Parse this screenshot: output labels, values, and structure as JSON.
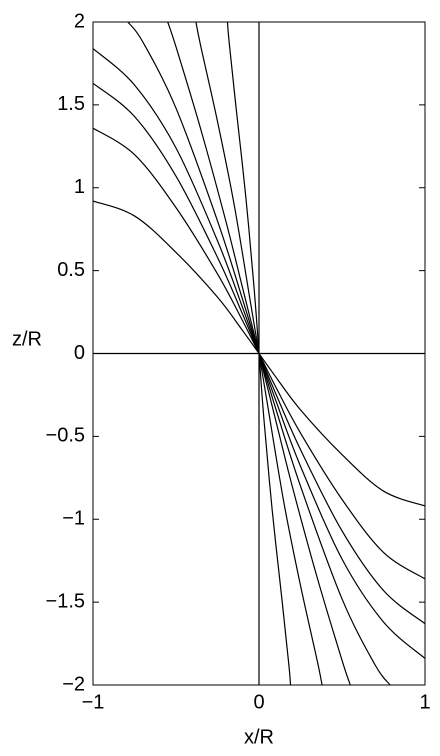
{
  "chart_data": {
    "type": "line",
    "xlabel": "x/R",
    "ylabel": "z/R",
    "color": "#000000",
    "xlim": [
      -1,
      1
    ],
    "ylim": [
      -2,
      2
    ],
    "xticks": [
      {
        "value": -1,
        "label": "−1"
      },
      0,
      1
    ],
    "yticks": [
      {
        "value": -2,
        "label": "−2"
      },
      {
        "value": -1.5,
        "label": "−1.5"
      },
      {
        "value": -1,
        "label": "−1"
      },
      {
        "value": -0.5,
        "label": "−0.5"
      },
      0,
      0.5,
      1,
      1.5,
      2
    ],
    "series": [
      {
        "x": [
          0,
          0
        ],
        "values": [
          -2,
          2
        ]
      },
      {
        "x": [
          -1,
          1
        ],
        "values": [
          0,
          0
        ]
      },
      {
        "x": [
          0,
          -0.1,
          -0.25,
          -0.5,
          -0.75,
          -1
        ],
        "values": [
          0,
          0.14,
          0.34,
          0.61,
          0.83,
          0.92
        ]
      },
      {
        "x": [
          0,
          -0.1,
          -0.25,
          -0.5,
          -0.75,
          -1
        ],
        "values": [
          0,
          0.2,
          0.48,
          0.88,
          1.2,
          1.36
        ]
      },
      {
        "x": [
          0,
          -0.1,
          -0.25,
          -0.5,
          -0.75,
          -1
        ],
        "values": [
          0,
          0.24,
          0.58,
          1.07,
          1.43,
          1.63
        ]
      },
      {
        "x": [
          0,
          -0.1,
          -0.25,
          -0.5,
          -0.75,
          -1
        ],
        "values": [
          0,
          0.28,
          0.68,
          1.24,
          1.62,
          1.84
        ]
      },
      {
        "x": [
          0,
          -0.1,
          -0.25,
          -0.5,
          -0.7,
          -0.79
        ],
        "values": [
          0,
          0.33,
          0.8,
          1.48,
          1.88,
          2
        ]
      },
      {
        "x": [
          0,
          -0.1,
          -0.2,
          -0.35,
          -0.5,
          -0.55
        ],
        "values": [
          0,
          0.4,
          0.8,
          1.35,
          1.85,
          2
        ]
      },
      {
        "x": [
          0,
          -0.05,
          -0.15,
          -0.25,
          -0.35,
          -0.38
        ],
        "values": [
          0,
          0.3,
          0.9,
          1.4,
          1.85,
          2
        ]
      },
      {
        "x": [
          0,
          -0.03,
          -0.08,
          -0.14,
          -0.18,
          -0.19
        ],
        "values": [
          0,
          0.4,
          0.95,
          1.5,
          1.88,
          2
        ]
      },
      {
        "x": [
          0,
          0.1,
          0.25,
          0.5,
          0.75,
          1
        ],
        "values": [
          0,
          -0.14,
          -0.34,
          -0.61,
          -0.83,
          -0.92
        ]
      },
      {
        "x": [
          0,
          0.1,
          0.25,
          0.5,
          0.75,
          1
        ],
        "values": [
          0,
          -0.2,
          -0.48,
          -0.88,
          -1.2,
          -1.36
        ]
      },
      {
        "x": [
          0,
          0.1,
          0.25,
          0.5,
          0.75,
          1
        ],
        "values": [
          0,
          -0.24,
          -0.58,
          -1.07,
          -1.43,
          -1.63
        ]
      },
      {
        "x": [
          0,
          0.1,
          0.25,
          0.5,
          0.75,
          1
        ],
        "values": [
          0,
          -0.28,
          -0.68,
          -1.24,
          -1.62,
          -1.84
        ]
      },
      {
        "x": [
          0,
          0.1,
          0.25,
          0.5,
          0.7,
          0.79
        ],
        "values": [
          0,
          -0.33,
          -0.8,
          -1.48,
          -1.88,
          -2
        ]
      },
      {
        "x": [
          0,
          0.1,
          0.2,
          0.35,
          0.5,
          0.55
        ],
        "values": [
          0,
          -0.4,
          -0.8,
          -1.35,
          -1.85,
          -2
        ]
      },
      {
        "x": [
          0,
          0.05,
          0.15,
          0.25,
          0.35,
          0.38
        ],
        "values": [
          0,
          -0.3,
          -0.9,
          -1.4,
          -1.85,
          -2
        ]
      },
      {
        "x": [
          0,
          0.03,
          0.08,
          0.14,
          0.18,
          0.19
        ],
        "values": [
          0,
          -0.4,
          -0.95,
          -1.5,
          -1.88,
          -2
        ]
      }
    ]
  }
}
